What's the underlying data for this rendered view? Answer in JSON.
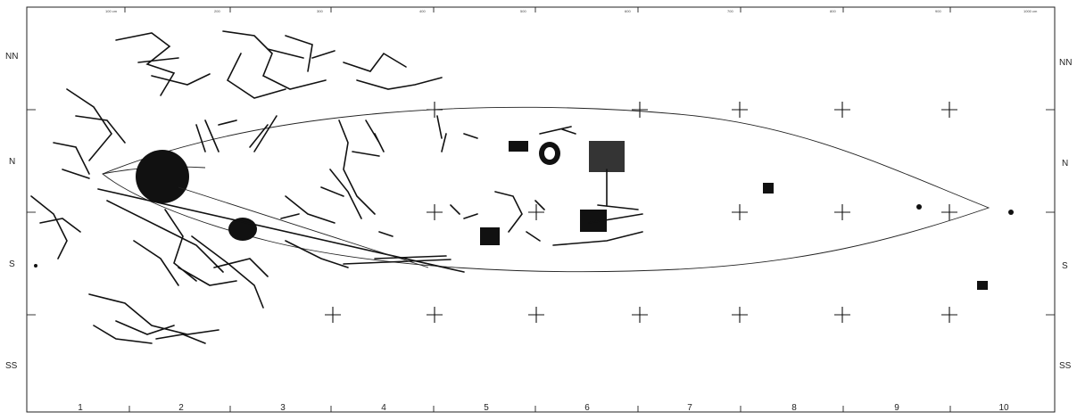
{
  "rows": {
    "left": [
      "NN",
      "N",
      "S",
      "SS"
    ],
    "right": [
      "NN",
      "N",
      "S",
      "SS"
    ]
  },
  "columns": [
    "1",
    "2",
    "3",
    "4",
    "5",
    "6",
    "7",
    "8",
    "9",
    "10"
  ],
  "top_ticks": [
    "100 cm",
    "200",
    "300",
    "400",
    "500",
    "600",
    "700",
    "800",
    "900",
    "1000 cm"
  ]
}
